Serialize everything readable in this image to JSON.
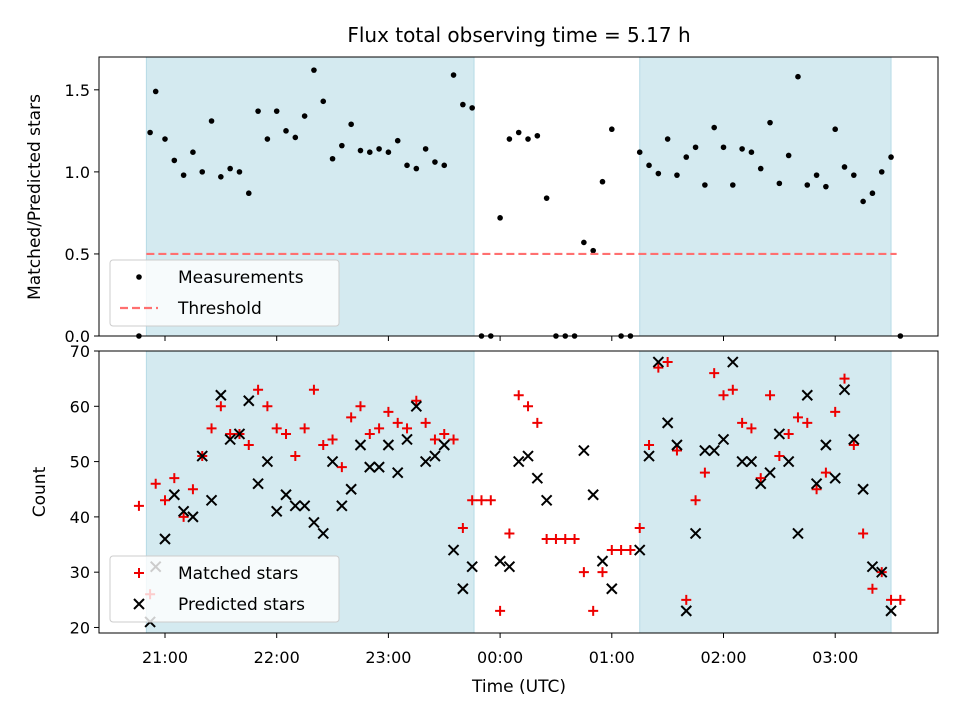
{
  "chart_data": [
    {
      "type": "scatter",
      "title": "Flux total observing time = 5.17 h",
      "xlabel": "",
      "ylabel": "Matched/Predicted stars",
      "ylim": [
        0,
        1.7
      ],
      "y_ticks": [
        "0.0",
        "0.5",
        "1.0",
        "1.5"
      ],
      "x_ticks": [
        "21:00",
        "22:00",
        "23:00",
        "00:00",
        "01:00",
        "02:00",
        "03:00"
      ],
      "grid": false,
      "legend_position": "lower-left",
      "shaded_intervals": [
        [
          "20:50",
          "23:46"
        ],
        [
          "01:15",
          "03:30"
        ]
      ],
      "shade_color": "#d4eaf0",
      "series": [
        {
          "name": "Measurements",
          "color": "#000000",
          "marker": "dot",
          "points": [
            [
              "20:46",
              0.0
            ],
            [
              "20:52",
              1.24
            ],
            [
              "20:55",
              1.49
            ],
            [
              "21:00",
              1.2
            ],
            [
              "21:05",
              1.07
            ],
            [
              "21:10",
              0.98
            ],
            [
              "21:15",
              1.12
            ],
            [
              "21:20",
              1.0
            ],
            [
              "21:25",
              1.31
            ],
            [
              "21:30",
              0.97
            ],
            [
              "21:35",
              1.02
            ],
            [
              "21:40",
              1.0
            ],
            [
              "21:45",
              0.87
            ],
            [
              "21:50",
              1.37
            ],
            [
              "21:55",
              1.2
            ],
            [
              "22:00",
              1.37
            ],
            [
              "22:05",
              1.25
            ],
            [
              "22:10",
              1.21
            ],
            [
              "22:15",
              1.34
            ],
            [
              "22:20",
              1.62
            ],
            [
              "22:25",
              1.43
            ],
            [
              "22:30",
              1.08
            ],
            [
              "22:35",
              1.16
            ],
            [
              "22:40",
              1.29
            ],
            [
              "22:45",
              1.13
            ],
            [
              "22:50",
              1.12
            ],
            [
              "22:55",
              1.14
            ],
            [
              "23:00",
              1.12
            ],
            [
              "23:05",
              1.19
            ],
            [
              "23:10",
              1.04
            ],
            [
              "23:15",
              1.02
            ],
            [
              "23:20",
              1.14
            ],
            [
              "23:25",
              1.06
            ],
            [
              "23:30",
              1.04
            ],
            [
              "23:35",
              1.59
            ],
            [
              "23:40",
              1.41
            ],
            [
              "23:45",
              1.39
            ],
            [
              "23:50",
              0.0
            ],
            [
              "23:55",
              0.0
            ],
            [
              "00:00",
              0.72
            ],
            [
              "00:05",
              1.2
            ],
            [
              "00:10",
              1.24
            ],
            [
              "00:15",
              1.2
            ],
            [
              "00:20",
              1.22
            ],
            [
              "00:25",
              0.84
            ],
            [
              "00:30",
              0.0
            ],
            [
              "00:35",
              0.0
            ],
            [
              "00:40",
              0.0
            ],
            [
              "00:45",
              0.57
            ],
            [
              "00:50",
              0.52
            ],
            [
              "00:55",
              0.94
            ],
            [
              "01:00",
              1.26
            ],
            [
              "01:05",
              0.0
            ],
            [
              "01:10",
              0.0
            ],
            [
              "01:15",
              1.12
            ],
            [
              "01:20",
              1.04
            ],
            [
              "01:25",
              0.99
            ],
            [
              "01:30",
              1.2
            ],
            [
              "01:35",
              0.98
            ],
            [
              "01:40",
              1.09
            ],
            [
              "01:45",
              1.15
            ],
            [
              "01:50",
              0.92
            ],
            [
              "01:55",
              1.27
            ],
            [
              "02:00",
              1.15
            ],
            [
              "02:05",
              0.92
            ],
            [
              "02:10",
              1.14
            ],
            [
              "02:15",
              1.12
            ],
            [
              "02:20",
              1.02
            ],
            [
              "02:25",
              1.3
            ],
            [
              "02:30",
              0.93
            ],
            [
              "02:35",
              1.1
            ],
            [
              "02:40",
              1.58
            ],
            [
              "02:45",
              0.92
            ],
            [
              "02:50",
              0.98
            ],
            [
              "02:55",
              0.91
            ],
            [
              "03:00",
              1.26
            ],
            [
              "03:05",
              1.03
            ],
            [
              "03:10",
              0.98
            ],
            [
              "03:15",
              0.82
            ],
            [
              "03:20",
              0.87
            ],
            [
              "03:25",
              1.0
            ],
            [
              "03:30",
              1.09
            ],
            [
              "03:35",
              0.0
            ]
          ]
        },
        {
          "name": "Threshold",
          "color": "#ff7070",
          "line_style": "dashed",
          "points": [
            [
              "20:50",
              0.5
            ],
            [
              "03:33",
              0.5
            ]
          ]
        }
      ]
    },
    {
      "type": "scatter",
      "title": "",
      "xlabel": "Time (UTC)",
      "ylabel": "Count",
      "ylim": [
        19,
        70
      ],
      "y_ticks": [
        "20",
        "30",
        "40",
        "50",
        "60",
        "70"
      ],
      "x_ticks": [
        "21:00",
        "22:00",
        "23:00",
        "00:00",
        "01:00",
        "02:00",
        "03:00"
      ],
      "grid": false,
      "legend_position": "lower-left",
      "shaded_intervals": [
        [
          "20:50",
          "23:46"
        ],
        [
          "01:15",
          "03:30"
        ]
      ],
      "shade_color": "#d4eaf0",
      "series": [
        {
          "name": "Matched stars",
          "color": "#ee0000",
          "marker": "plus",
          "points": [
            [
              "20:46",
              42
            ],
            [
              "20:52",
              26
            ],
            [
              "20:55",
              46
            ],
            [
              "21:00",
              43
            ],
            [
              "21:05",
              47
            ],
            [
              "21:10",
              40
            ],
            [
              "21:15",
              45
            ],
            [
              "21:20",
              51
            ],
            [
              "21:25",
              56
            ],
            [
              "21:30",
              60
            ],
            [
              "21:35",
              55
            ],
            [
              "21:40",
              55
            ],
            [
              "21:45",
              53
            ],
            [
              "21:50",
              63
            ],
            [
              "21:55",
              60
            ],
            [
              "22:00",
              56
            ],
            [
              "22:05",
              55
            ],
            [
              "22:10",
              51
            ],
            [
              "22:15",
              56
            ],
            [
              "22:20",
              63
            ],
            [
              "22:25",
              53
            ],
            [
              "22:30",
              54
            ],
            [
              "22:35",
              49
            ],
            [
              "22:40",
              58
            ],
            [
              "22:45",
              60
            ],
            [
              "22:50",
              55
            ],
            [
              "22:55",
              56
            ],
            [
              "23:00",
              59
            ],
            [
              "23:05",
              57
            ],
            [
              "23:10",
              56
            ],
            [
              "23:15",
              61
            ],
            [
              "23:20",
              57
            ],
            [
              "23:25",
              54
            ],
            [
              "23:30",
              55
            ],
            [
              "23:35",
              54
            ],
            [
              "23:40",
              38
            ],
            [
              "23:45",
              43
            ],
            [
              "23:50",
              43
            ],
            [
              "23:55",
              43
            ],
            [
              "00:00",
              23
            ],
            [
              "00:05",
              37
            ],
            [
              "00:10",
              62
            ],
            [
              "00:15",
              60
            ],
            [
              "00:20",
              57
            ],
            [
              "00:25",
              36
            ],
            [
              "00:30",
              36
            ],
            [
              "00:35",
              36
            ],
            [
              "00:40",
              36
            ],
            [
              "00:45",
              30
            ],
            [
              "00:50",
              23
            ],
            [
              "00:55",
              30
            ],
            [
              "01:00",
              34
            ],
            [
              "01:05",
              34
            ],
            [
              "01:10",
              34
            ],
            [
              "01:15",
              38
            ],
            [
              "01:20",
              53
            ],
            [
              "01:25",
              67
            ],
            [
              "01:30",
              68
            ],
            [
              "01:35",
              52
            ],
            [
              "01:40",
              25
            ],
            [
              "01:45",
              43
            ],
            [
              "01:50",
              48
            ],
            [
              "01:55",
              66
            ],
            [
              "02:00",
              62
            ],
            [
              "02:05",
              63
            ],
            [
              "02:10",
              57
            ],
            [
              "02:15",
              56
            ],
            [
              "02:20",
              47
            ],
            [
              "02:25",
              62
            ],
            [
              "02:30",
              51
            ],
            [
              "02:35",
              55
            ],
            [
              "02:40",
              58
            ],
            [
              "02:45",
              57
            ],
            [
              "02:50",
              45
            ],
            [
              "02:55",
              48
            ],
            [
              "03:00",
              59
            ],
            [
              "03:05",
              65
            ],
            [
              "03:10",
              53
            ],
            [
              "03:15",
              37
            ],
            [
              "03:20",
              27
            ],
            [
              "03:25",
              30
            ],
            [
              "03:30",
              25
            ],
            [
              "03:35",
              25
            ]
          ]
        },
        {
          "name": "Predicted stars",
          "color": "#000000",
          "marker": "x",
          "points": [
            [
              "20:52",
              21
            ],
            [
              "20:55",
              31
            ],
            [
              "21:00",
              36
            ],
            [
              "21:05",
              44
            ],
            [
              "21:10",
              41
            ],
            [
              "21:15",
              40
            ],
            [
              "21:20",
              51
            ],
            [
              "21:25",
              43
            ],
            [
              "21:30",
              62
            ],
            [
              "21:35",
              54
            ],
            [
              "21:40",
              55
            ],
            [
              "21:45",
              61
            ],
            [
              "21:50",
              46
            ],
            [
              "21:55",
              50
            ],
            [
              "22:00",
              41
            ],
            [
              "22:05",
              44
            ],
            [
              "22:10",
              42
            ],
            [
              "22:15",
              42
            ],
            [
              "22:20",
              39
            ],
            [
              "22:25",
              37
            ],
            [
              "22:30",
              50
            ],
            [
              "22:35",
              42
            ],
            [
              "22:40",
              45
            ],
            [
              "22:45",
              53
            ],
            [
              "22:50",
              49
            ],
            [
              "22:55",
              49
            ],
            [
              "23:00",
              53
            ],
            [
              "23:05",
              48
            ],
            [
              "23:10",
              54
            ],
            [
              "23:15",
              60
            ],
            [
              "23:20",
              50
            ],
            [
              "23:25",
              51
            ],
            [
              "23:30",
              53
            ],
            [
              "23:35",
              34
            ],
            [
              "23:40",
              27
            ],
            [
              "23:45",
              31
            ],
            [
              "00:00",
              32
            ],
            [
              "00:05",
              31
            ],
            [
              "00:10",
              50
            ],
            [
              "00:15",
              51
            ],
            [
              "00:20",
              47
            ],
            [
              "00:25",
              43
            ],
            [
              "00:45",
              52
            ],
            [
              "00:50",
              44
            ],
            [
              "00:55",
              32
            ],
            [
              "01:00",
              27
            ],
            [
              "01:15",
              34
            ],
            [
              "01:20",
              51
            ],
            [
              "01:25",
              68
            ],
            [
              "01:30",
              57
            ],
            [
              "01:35",
              53
            ],
            [
              "01:40",
              23
            ],
            [
              "01:45",
              37
            ],
            [
              "01:50",
              52
            ],
            [
              "01:55",
              52
            ],
            [
              "02:00",
              54
            ],
            [
              "02:05",
              68
            ],
            [
              "02:10",
              50
            ],
            [
              "02:15",
              50
            ],
            [
              "02:20",
              46
            ],
            [
              "02:25",
              48
            ],
            [
              "02:30",
              55
            ],
            [
              "02:35",
              50
            ],
            [
              "02:40",
              37
            ],
            [
              "02:45",
              62
            ],
            [
              "02:50",
              46
            ],
            [
              "02:55",
              53
            ],
            [
              "03:00",
              47
            ],
            [
              "03:05",
              63
            ],
            [
              "03:10",
              54
            ],
            [
              "03:15",
              45
            ],
            [
              "03:20",
              31
            ],
            [
              "03:25",
              30
            ],
            [
              "03:30",
              23
            ]
          ]
        }
      ]
    }
  ]
}
